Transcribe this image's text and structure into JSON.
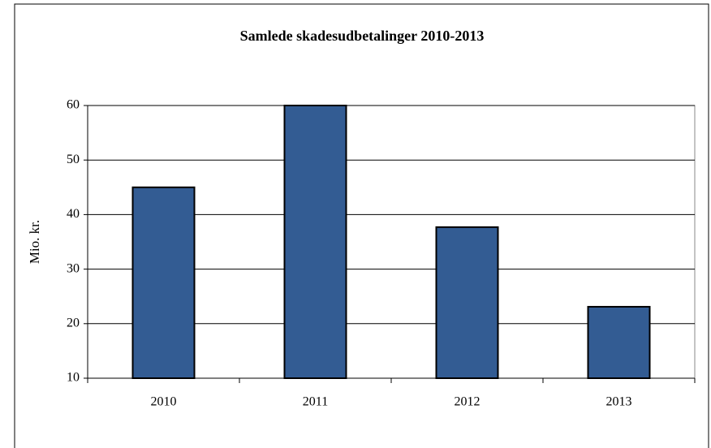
{
  "chart_data": {
    "type": "bar",
    "title": "Samlede skadesudbetalinger 2010-2013",
    "y_label": "Mio. kr.",
    "categories": [
      "2010",
      "2011",
      "2012",
      "2013"
    ],
    "values": [
      45,
      60,
      37.7,
      23.1
    ],
    "color": "#335c93",
    "ylim": [
      10,
      60
    ],
    "yticks": [
      10,
      20,
      30,
      40,
      50,
      60
    ],
    "grid": true
  }
}
